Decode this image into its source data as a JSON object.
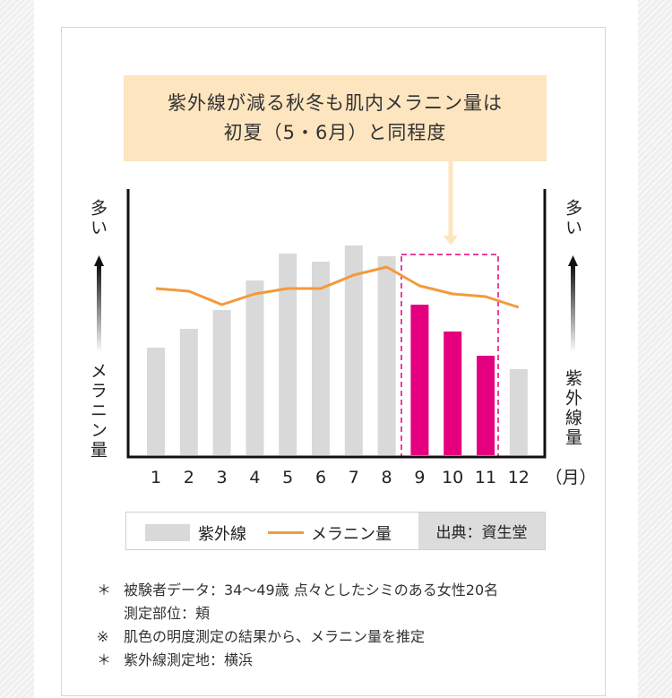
{
  "callout": {
    "line1": "紫外線が減る秋冬も肌内メラニン量は",
    "line2": "初夏（5・6月）と同程度"
  },
  "left_axis": {
    "top": "多い",
    "bottom": "メラニン量"
  },
  "right_axis": {
    "top": "多い",
    "bottom": "紫外線量"
  },
  "month_unit": "（月）",
  "legend": {
    "bars": "紫外線",
    "line": "メラニン量",
    "source": "出典：資生堂"
  },
  "notes": [
    {
      "mark": "＊",
      "text": "被験者データ：34〜49歳 点々としたシミのある女性20名"
    },
    {
      "mark": "",
      "text": "測定部位：頬"
    },
    {
      "mark": "※",
      "text": "肌色の明度測定の結果から、メラニン量を推定"
    },
    {
      "mark": "＊",
      "text": "紫外線測定地：横浜"
    }
  ],
  "colors": {
    "bar": "#d9d9d9",
    "highlight": "#e4007f",
    "line": "#f39a3b",
    "callout": "#fde5bf"
  },
  "chart_data": {
    "type": "bar",
    "categories": [
      "1",
      "2",
      "3",
      "4",
      "5",
      "6",
      "7",
      "8",
      "9",
      "10",
      "11",
      "12"
    ],
    "series": [
      {
        "name": "紫外線",
        "kind": "bar",
        "values": [
          40,
          47,
          54,
          65,
          75,
          72,
          78,
          74,
          56,
          46,
          37,
          32
        ],
        "highlight_indices": [
          8,
          9,
          10
        ]
      },
      {
        "name": "メラニン量",
        "kind": "line",
        "values": [
          62,
          61,
          56,
          60,
          62,
          62,
          67,
          70,
          63,
          60,
          59,
          55
        ]
      }
    ],
    "ylim": [
      0,
      100
    ],
    "title": "",
    "xlabel": "（月）",
    "ylabel": "メラニン量"
  }
}
